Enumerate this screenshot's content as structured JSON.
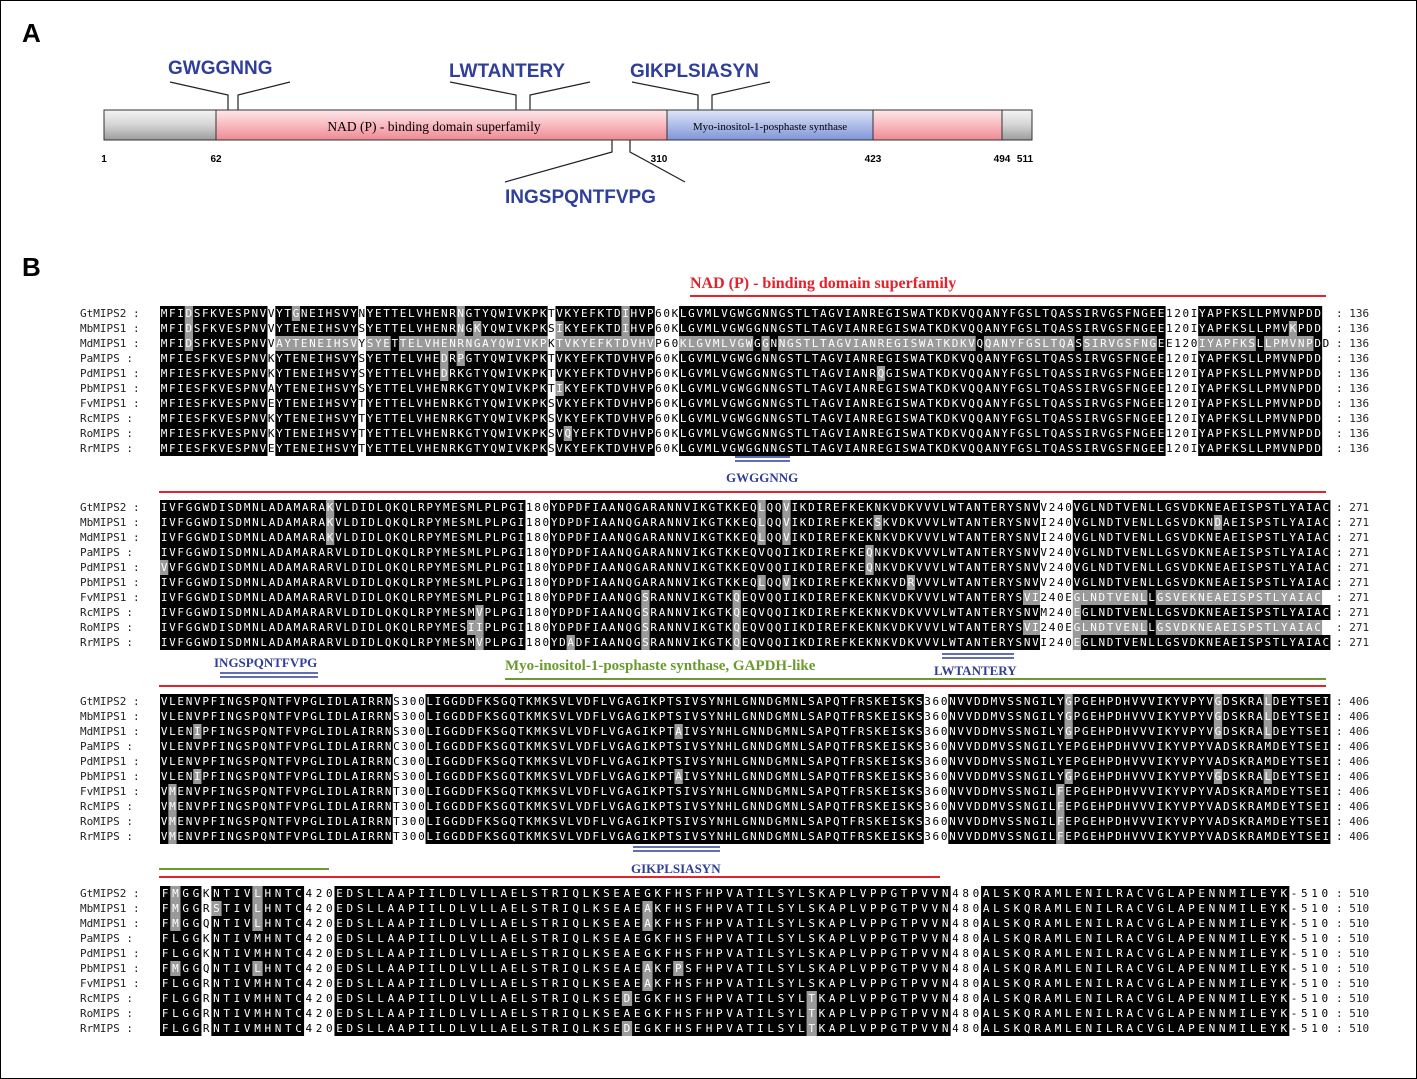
{
  "panel_a": {
    "letter": "A",
    "domain_nad": "NAD (P) - binding domain superfamily",
    "domain_myo": "Myo-inositol-1-posphaste synthase",
    "positions": [
      "1",
      "62",
      "310",
      "423",
      "494",
      "511"
    ],
    "motifs_top": [
      "GWGGNNG",
      "LWTANTERY",
      "GIKPLSIASYN"
    ],
    "motif_bottom": "INGSPQNTFVPG"
  },
  "panel_b": {
    "letter": "B",
    "annotation_nad": "NAD (P) - binding domain superfamily",
    "annotation_myo": "Myo-inositol-1-posphaste synthase, GAPDH-like",
    "motif_labels": {
      "gwggnng": "GWGGNNG",
      "ingspqntfvpg": "INGSPQNTFVPG",
      "lwtantery": "LWTANTERY",
      "gikplsiasyn": "GIKPLSIASYN"
    },
    "colors": {
      "motif_blue": "#2f3f9a",
      "nad_red": "#e4222b",
      "gapdh_green": "#6b9a2e",
      "conserved": "#000000",
      "similar": "#9a9a9a"
    },
    "blocks": [
      {
        "end_label": ": 136",
        "rows": [
          {
            "name": "GtMIPS2",
            "seq": "MFIDSFKVESPNVVYTGNEIHSVYNYETTELVHENRNGTYQWIVKPKTVKYEFKTDIHVP60KLGVMLVGWGGNNGSTLTAGVIANREGISWATKDKVQQANYFGSLTQASSIRVGSFNGEE120IYAPFKSLLPMVNPDD"
          },
          {
            "name": "MbMIPS1",
            "seq": "MFIDSFKVESPNVVYTENEIHSVYSYETTELVHENRNGKYQWIVKPKSIKYEFKTDIHVP60KLGVMLVGWGGNNGSTLTAGVIANREGISWATKDKVQQANYFGSLTQASSIRVGSFNGEE120IYAPFKSLLPMVKPDD"
          },
          {
            "name": "MdMIPS1",
            "seq": "MFIDSFKVESPNVVAYTENEIHSVYSYETTELVHENRNGAYQWIVKPKTVKYEFKTDVHVP60KLGVMLVGWGGNNGSTLTAGVIANREGISWATKDKVQQANYFGSLTQASSIRVGSFNGEE120IYAPFKSLLPMVNPDD"
          },
          {
            "name": "PaMIPS",
            "seq": "MFIESFKVESPNVKYTENEIHSVYSYETTELVHEDRPGTYQWIVKPKTVKYEFKTDVHVP60KLGVMLVGWGGNNGSTLTAGVIANREGISWATKDKVQQANYFGSLTQASSIRVGSFNGEE120IYAPFKSLLPMVNPDD"
          },
          {
            "name": "PdMIPS1",
            "seq": "MFIESFKVESPNVKYTENEIHSVYSYETTELVHEDRKGTYQWIVKPKTVKYEFKTDVHVP60KLGVMLVGWGGNNGSTLTAGVIANRQGISWATKDKVQQANYFGSLTQASSIRVGSFNGEE120IYAPFKSLLPMVNPDD"
          },
          {
            "name": "PbMIPS1",
            "seq": "MFIESFKVESPNVAYTENEIHSVYSYETTELVHENRKGTYQWIVKPKTIKYEFKTDVHVP60KLGVMLVGWGGNNGSTLTAGVIANREGISWATKDKVQQANYFGSLTQASSIRVGSFNGEE120IYAPFKSLLPMVNPDD"
          },
          {
            "name": "FvMIPS1",
            "seq": "MFIESFKVESPNVEYTENEIHSVYTYETTELVHENRKGTYQWIVKPKSVKYEFKTDVHVP60KLGVMLVGWGGNNGSTLTAGVIANREGISWATKDKVQQANYFGSLTQASSIRVGSFNGEE120IYAPFKSLLPMVNPDD"
          },
          {
            "name": "RcMIPS",
            "seq": "MFIESFKVESPNVKYTENEIHSVYTYETTELVHENRKGTYQWIVKPKSVKYEFKTDVHVP60KLGVMLVGWGGNNGSTLTAGVIANREGISWATKDKVQQANYFGSLTQASSIRVGSFNGEE120IYAPFKSLLPMVNPDD"
          },
          {
            "name": "RoMIPS",
            "seq": "MFIESFKVESPNVKYTENEIHSVYTYETTELVHENRKGTYQWIVKPKSVQYEFKTDVHVP60KLGVMLVGWGGNNGSTLTAGVIANREGISWATKDKVQQANYFGSLTQASSIRVGSFNGEE120IYAPFKSLLPMVNPDD"
          },
          {
            "name": "RrMIPS",
            "seq": "MFIESFKVESPNVEYTENEIHSVYTYETTELVHENRKGTYQWIVKPKSVKYEFKTDVHVP60KLGVMLVGWGGNNGSTLTAGVIANREGISWATKDKVQQANYFGSLTQASSIRVGSFNGEE120IYAPFKSLLPMVNPDD"
          }
        ]
      },
      {
        "end_label": ": 271",
        "rows": [
          {
            "name": "GtMIPS2",
            "seq": "IVFGGWDISDMNLADAMARAKVLDIDLQKQLRPYMESMLPLPGI180YDPDFIAANQGARANNVIKGTKKEQLQQVIKDIREFKEKNKVDKVVVLWTANTERYSNVV240VGLNDTVENLLGSVDKNEAEISPSTLYAIAC"
          },
          {
            "name": "MbMIPS1",
            "seq": "IVFGGWDISDMNLADAMARAKVLDIDLQKQLRPYMESMLPLPGI180YDPDFIAANQGARANNVIKGTKKEQLQQVIKDIREFKEKSKVDKVVVLWTANTERYSNVI240VGLNDTVENLLGSVDKNDAEISPSTLYAIAC"
          },
          {
            "name": "MdMIPS1",
            "seq": "IVFGGWDISDMNLADAMARAKVLDIDLQKQLRPYMESMLPLPGI180YDPDFIAANQGARANNVIKGTKKEQLQQVIKDIREFKEKNKVDKVVVLWTANTERYSNVI240VGLNDTVENLLGSVDKNEAEISPSTLYAIAC"
          },
          {
            "name": "PaMIPS",
            "seq": "IVFGGWDISDMNLADAMARARVLDIDLQKQLRPYMESMLPLPGI180YDPDFIAANQGARANNVIKGTKKEQVQQIIKDIREFKEQNKVDKVVVLWTANTERYSNVV240VGLNDTVENLLGSVDKNEAEISPSTLYAIAC"
          },
          {
            "name": "PdMIPS1",
            "seq": "VVFGGWDISDMNLADAMARARVLDIDLQKQLRPYMESMLPLPGI180YDPDFIAANQGARANNVIKGTKKEQVQQIIKDIREFKEQNKVDKVVVLWTANTERYSNVV240VGLNDTVENLLGSVDKNEAEISPSTLYAIAC"
          },
          {
            "name": "PbMIPS1",
            "seq": "IVFGGWDISDMNLADAMARARVLDIDLQKQLRPYMESMLPLPGI180YDPDFIAANQGARANNVIKGTKKEQLQQVIKDIREFKEKNKVDRVVVLWTANTERYSNVV240VGLNDTVENLLGSVDKNEAEISPSTLYAIAC"
          },
          {
            "name": "FvMIPS1",
            "seq": "IVFGGWDISDMNLADAMARARVLDIDLQKQLRPYMESMLPLPGI180YDPDFIAANQGSRANNVIKGTKQEQVQQIIKDIREFKEKNKVDKVVVLWTANTERYSVI240EGLNDTVENLLGSVEKNEAEISPSTLYAIAC"
          },
          {
            "name": "RcMIPS",
            "seq": "IVFGGWDISDMNLADAMARARVLDIDLQKQLRPYMESMVPLPGI180YDPDFIAANQGSRANNVIKGTKQEQVQQIIKDIREFKEKNKVDKVVVLWTANTERYSNVM240EGLNDTVENLLGSVDKNEAEISPSTLYAIAC"
          },
          {
            "name": "RoMIPS",
            "seq": "IVFGGWDISDMNLADAMARARVLDIDLQKQLRPYMESIIPLPGI180YDPDFIAANQGSRANNVIKGTKQEQVQQIIKDIREFKEKNKVDKVVVLWTANTERYSVI240EGLNDTVENLLGSVDKNEAEISPSTLYAIAC"
          },
          {
            "name": "RrMIPS",
            "seq": "IVFGGWDISDMNLADAMARARVLDIDLQKQLRPYMESMVPLPGI180YDADFIAANQGSRANNVIKGTKQEQVQQIIKDIREFKEKNKVDKVVVLWTANTERYSNVI240EGLNDTVENLLGSVDKNEAEISPSTLYAIAC"
          }
        ]
      },
      {
        "end_label": ": 406",
        "rows": [
          {
            "name": "GtMIPS2",
            "seq": "VLENVPFINGSPQNTFVPGLIDLAIRRNS300LIGGDDFKSGQTKMKSVLVDFLVGAGIKPTSIVSYNHLGNNDGMNLSAPQTFRSKEISKS360NVVDDMVSSNGILYGPGEHPDHVVVIKYVPYVGDSKRALDEYTSEI"
          },
          {
            "name": "MbMIPS1",
            "seq": "VLENVPFINGSPQNTFVPGLIDLAIRRNS300LIGGDDFKSGQTKMKSVLVDFLVGAGIKPTSIVSYNHLGNNDGMNLSAPQTFRSKEISKS360NVVDDMVSSNGILYGPGEHPDHVVVIKYVPYVGDSKRALDEYTSEI"
          },
          {
            "name": "MdMIPS1",
            "seq": "VLENIPFINGSPQNTFVPGLIDLAIRRNS300LIGGDDFKSGQTKMKSVLVDFLVGAGIKPTAIVSYNHLGNNDGMNLSAPQTFRSKEISKS360NVVDDMVSSNGILYGPGEHPDHVVVIKYVPYVGDSKRALDEYTSEI"
          },
          {
            "name": "PaMIPS",
            "seq": "VLENVPFINGSPQNTFVPGLIDLAIRRNC300LIGGDDFKSGQTKMKSVLVDFLVGAGIKPTSIVSYNHLGNNDGMNLSAPQTFRSKEISKS360NVVDDMVSSNGILYEPGEHPDHVVVIKYVPYVADSKRAMDEYTSEI"
          },
          {
            "name": "PdMIPS1",
            "seq": "VLENVPFINGSPQNTFVPGLIDLAIRRNC300LIGGDDFKSGQTKMKSVLVDFLVGAGIKPTSIVSYNHLGNNDGMNLSAPQTFRSKEISKS360NVVDDMVSSNGILYEPGEHPDHVVVIKYVPYVADSKRAMDEYTSEI"
          },
          {
            "name": "PbMIPS1",
            "seq": "VLENIPFINGSPQNTFVPGLIDLAIRRNS300LIGGDDFKSGQTKMKSVLVDFLVGAGIKPTAIVSYNHLGNNDGMNLSAPQTFRSKEISKS360NVVDDMVSSNGILYGPGEHPDHVVVIKYVPYVGDSKRALDEYTSEI"
          },
          {
            "name": "FvMIPS1",
            "seq": "VMENVPFINGSPQNTFVPGLIDLAIRRNT300LIGGDDFKSGQTKMKSVLVDFLVGAGIKPTSIVSYNHLGNNDGMNLSAPQTFRSKEISKS360NVVDDMVSSNGILFEPGEHPDHVVVIKYVPYVADSKRAMDEYTSEI"
          },
          {
            "name": "RcMIPS",
            "seq": "VMENVPFINGSPQNTFVPGLIDLAIRRNT300LIGGDDFKSGQTKMKSVLVDFLVGAGIKPTSIVSYNHLGNNDGMNLSAPQTFRSKEISKS360NVVDDMVSSNGILFEPGEHPDHVVVIKYVPYVADSKRAMDEYTSEI"
          },
          {
            "name": "RoMIPS",
            "seq": "VMENVPFINGSPQNTFVPGLIDLAIRRNT300LIGGDDFKSGQTKMKSVLVDFLVGAGIKPTSIVSYNHLGNNDGMNLSAPQTFRSKEISKS360NVVDDMVSSNGILFEPGEHPDHVVVIKYVPYVADSKRAMDEYTSEI"
          },
          {
            "name": "RrMIPS",
            "seq": "VMENVPFINGSPQNTFVPGLIDLAIRRNT300LIGGDDFKSGQTKMKSVLVDFLVGAGIKPTSIVSYNHLGNNDGMNLSAPQTFRSKEISKS360NVVDDMVSSNGILFEPGEHPDHVVVIKYVPYVADSKRAMDEYTSEI"
          }
        ]
      },
      {
        "end_label": ": 510",
        "rows": [
          {
            "name": "GtMIPS2",
            "seq": "FMGGKNTIVLHNTC420EDSLLAAPIILDLVLLAELSTRIQLKSEAEGKFHSFHPVATILSYLSKAPLVPPGTPVVN480ALSKQRAMLENILRACVGLAPENNMILEYK-510"
          },
          {
            "name": "MbMIPS1",
            "seq": "FMGGRSTIVLHNTC420EDSLLAAPIILDLVLLAELSTRIQLKSEAEAKFHSFHPVATILSYLSKAPLVPPGTPVVN480ALSKQRAMLENILRACVGLAPENNMILEYK-510"
          },
          {
            "name": "MdMIPS1",
            "seq": "FMGGQNTIVLHNTC420EDSLLAAPIILDLVLLAELSTRIQLKSEAEAKFHSFHPVATILSYLSKAPLVPPGTPVVN480ALSKQRAMLENILRACVGLAPENNMILEYK-510"
          },
          {
            "name": "PaMIPS",
            "seq": "FLGGKNTIVMHNTC420EDSLLAAPIILDLVLLAELSTRIQLKSEAEGKFHSFHPVATILSYLSKAPLVPPGTPVVN480ALSKQRAMLENILRACVGLAPENNMILEYK-510"
          },
          {
            "name": "PdMIPS1",
            "seq": "FLGGKNTIVMHNTC420EDSLLAAPIILDLVLLAELSTRIQLKSEAEGKFHSFHPVATILSYLSKAPLVPPGTPVVN480ALSKQRAMLENILRACVGLAPENNMILEYK-510"
          },
          {
            "name": "PbMIPS1",
            "seq": "FMGGQNTIVLHNTC420EDSLLAAPIILDLVLLAELSTRIQLKSEAEAKFPSFHPVATILSYLSKAPLVPPGTPVVN480ALSKQRAMLENILRACVGLAPENNMILEYK-510"
          },
          {
            "name": "FvMIPS1",
            "seq": "FLGGRNTIVMHNTC420EDSLLAAPIILDLVLLAELSTRIQLKSEAEAKFHSFHPVATILSYLSKAPLVPPGTPVVN480ALSKQRAMLENILRACVGLAPENNMILEYK-510"
          },
          {
            "name": "RcMIPS",
            "seq": "FLGGRNTIVMHNTC420EDSLLAAPIILDLVLLAELSTRIQLKSEDEGKFHSFHPVATILSYLTKAPLVPPGTPVVN480ALSKQRAMLENILRACVGLAPENNMILEYK-510"
          },
          {
            "name": "RoMIPS",
            "seq": "FLGGRNTIVMHNTC420EDSLLAAPIILDLVLLAELSTRIQLKSEAEGKFHSFHPVATILSYLTKAPLVPPGTPVVN480ALSKQRAMLENILRACVGLAPENNMILEYK-510"
          },
          {
            "name": "RrMIPS",
            "seq": "FLGGRNTIVMHNTC420EDSLLAAPIILDLVLLAELSTRIQLKSEDEGKFHSFHPVATILSYLTKAPLVPPGTPVVN480ALSKQRAMLENILRACVGLAPENNMILEYK-510"
          }
        ]
      }
    ]
  }
}
